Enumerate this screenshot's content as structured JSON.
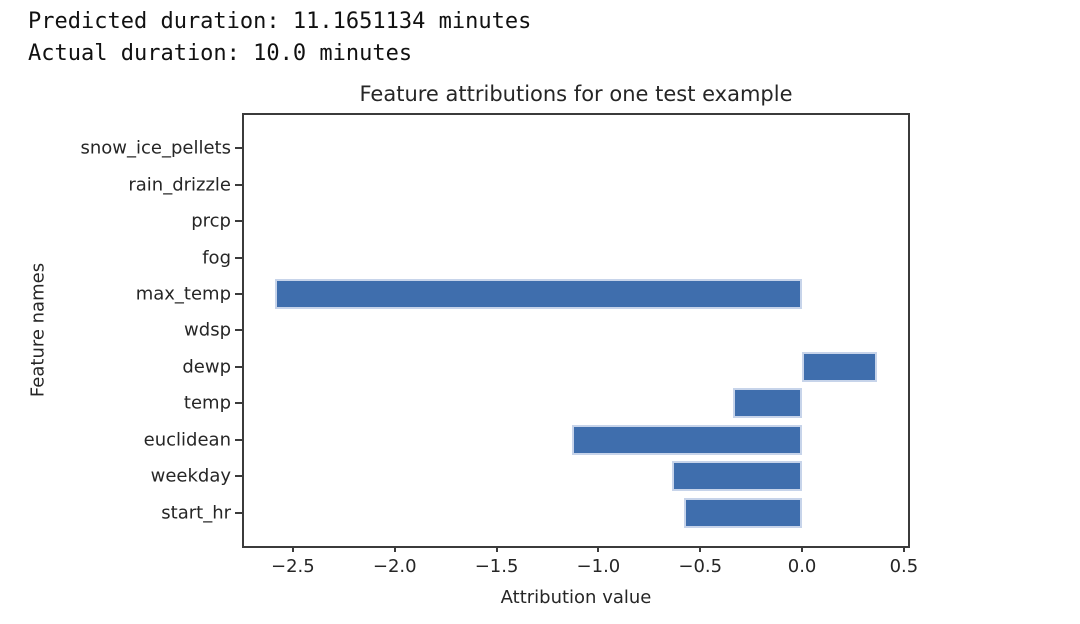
{
  "console": {
    "line1": "Predicted duration: 11.1651134 minutes",
    "line2": "Actual duration: 10.0 minutes"
  },
  "chart_data": {
    "type": "bar",
    "orientation": "horizontal",
    "title": "Feature attributions for one test example",
    "xlabel": "Attribution value",
    "ylabel": "Feature names",
    "categories_top_to_bottom": [
      "snow_ice_pellets",
      "rain_drizzle",
      "prcp",
      "fog",
      "max_temp",
      "wdsp",
      "dewp",
      "temp",
      "euclidean",
      "weekday",
      "start_hr"
    ],
    "values": [
      0,
      0,
      0,
      0,
      -2.59,
      0,
      0.37,
      -0.34,
      -1.13,
      -0.64,
      -0.58
    ],
    "xlim": [
      -2.74,
      0.52
    ],
    "xticks": [
      -2.5,
      -2.0,
      -1.5,
      -1.0,
      -0.5,
      0.0,
      0.5
    ],
    "xtick_labels": [
      "−2.5",
      "−2.0",
      "−1.5",
      "−1.0",
      "−0.5",
      "0.0",
      "0.5"
    ],
    "grid": false,
    "legend": false,
    "colors": {
      "bar_fill": "#3f6ead",
      "bar_edge": "#c7d4ea",
      "spine": "#3b3b3b",
      "text": "#262626"
    }
  }
}
